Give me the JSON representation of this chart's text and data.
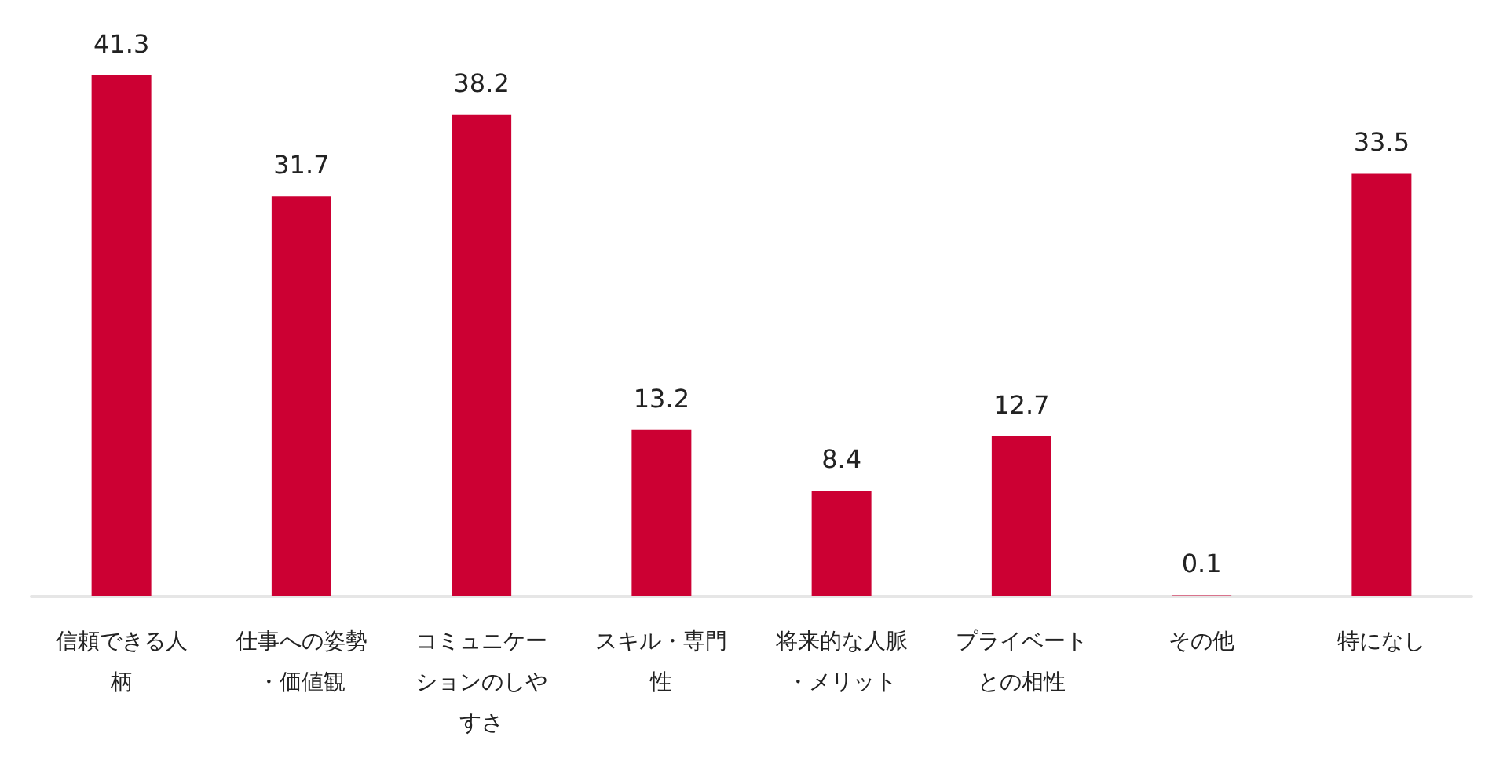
{
  "chart_data": {
    "type": "bar",
    "categories": [
      "信頼できる人柄",
      "仕事への姿勢・価値観",
      "コミュニケーションのしやすさ",
      "スキル・専門性",
      "将来的な人脈・メリット",
      "プライベートとの相性",
      "その他",
      "特になし"
    ],
    "values": [
      41.3,
      31.7,
      38.2,
      13.2,
      8.4,
      12.7,
      0.1,
      33.5
    ],
    "color": "#cc0033",
    "data_labels": true
  }
}
